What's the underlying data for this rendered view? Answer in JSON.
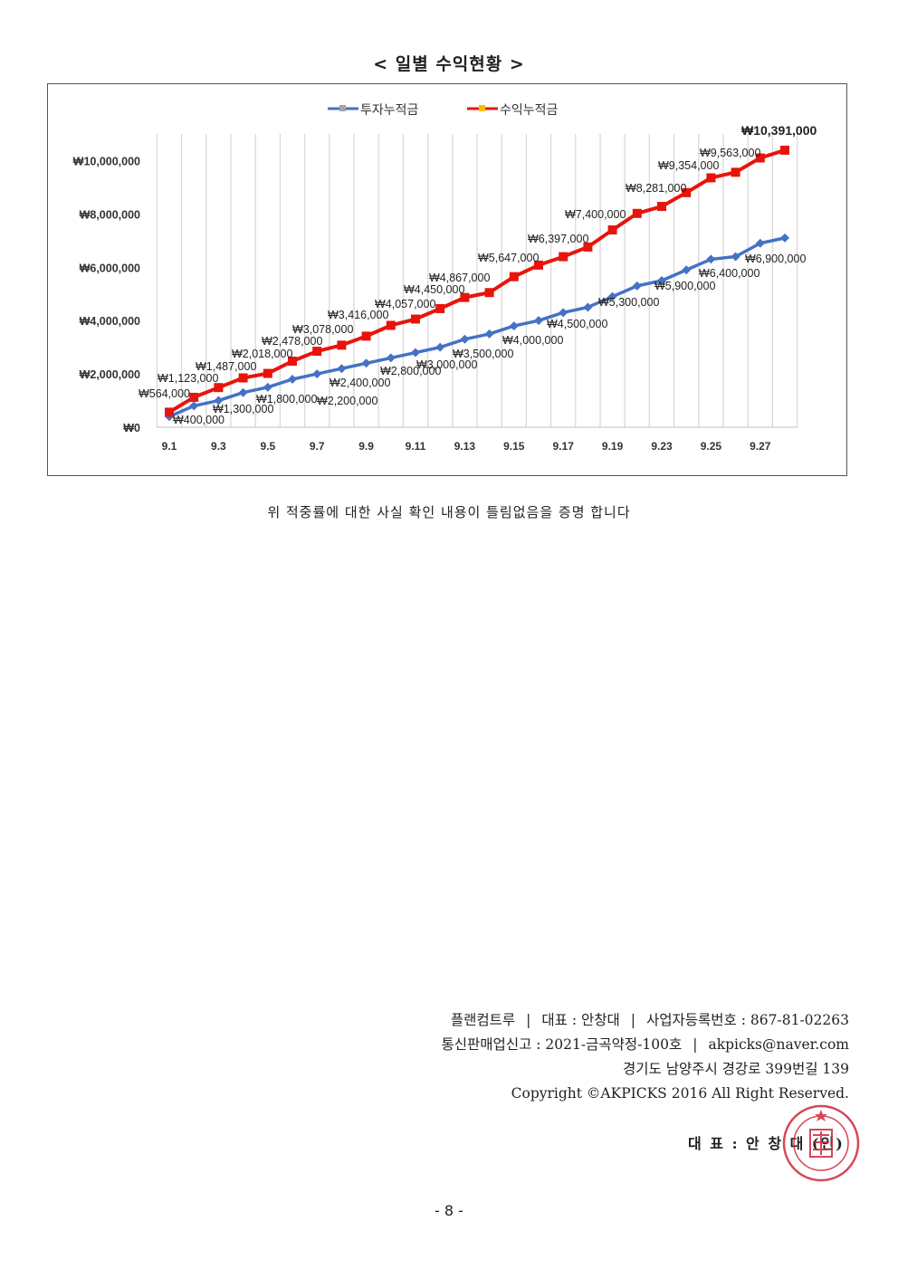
{
  "title": "< 일별 수익현황 >",
  "chart_data": {
    "type": "line",
    "title": "",
    "xlabel": "",
    "ylabel": "",
    "ylim": [
      0,
      11000000
    ],
    "y_ticks": [
      0,
      2000000,
      4000000,
      6000000,
      8000000,
      10000000
    ],
    "y_tick_labels": [
      "₩0",
      "₩2,000,000",
      "₩4,000,000",
      "₩6,000,000",
      "₩8,000,000",
      "₩10,000,000"
    ],
    "categories": [
      "9.1",
      "",
      "9.3",
      "",
      "9.5",
      "",
      "9.7",
      "",
      "9.9",
      "",
      "9.11",
      "",
      "9.13",
      "",
      "9.15",
      "",
      "9.17",
      "",
      "9.19",
      "",
      "9.23",
      "",
      "9.25",
      "",
      "9.27",
      ""
    ],
    "grid": "vertical",
    "legend_position": "top",
    "series": [
      {
        "name": "투자누적금",
        "color": "#4472c4",
        "marker": "diamond",
        "values": [
          400000,
          800000,
          1000000,
          1300000,
          1500000,
          1800000,
          2000000,
          2200000,
          2400000,
          2600000,
          2800000,
          3000000,
          3300000,
          3500000,
          3800000,
          4000000,
          4300000,
          4500000,
          4900000,
          5300000,
          5500000,
          5900000,
          6300000,
          6400000,
          6900000,
          7100000
        ],
        "labels": [
          "₩400,000",
          null,
          null,
          "₩1,300,000",
          null,
          "₩1,800,000",
          null,
          "₩2,200,000",
          "₩2,400,000",
          null,
          "₩2,800,000",
          "₩3,000,000",
          null,
          "₩3,500,000",
          null,
          "₩4,000,000",
          null,
          "₩4,500,000",
          null,
          "₩5,300,000",
          null,
          "₩5,900,000",
          null,
          "₩6,400,000",
          "₩6,900,000",
          null
        ]
      },
      {
        "name": "수익누적금",
        "color": "#e8140c",
        "marker": "square",
        "values": [
          564000,
          1123000,
          1487000,
          1850000,
          2018000,
          2478000,
          2850000,
          3078000,
          3416000,
          3820000,
          4057000,
          4450000,
          4867000,
          5050000,
          5647000,
          6080000,
          6397000,
          6760000,
          7400000,
          8020000,
          8281000,
          8800000,
          9354000,
          9563000,
          10100000,
          10391000
        ],
        "labels": [
          "₩564,000",
          "₩1,123,000",
          "₩1,487,000",
          null,
          "₩2,018,000",
          "₩2,478,000",
          null,
          "₩3,078,000",
          "₩3,416,000",
          null,
          "₩4,057,000",
          "₩4,450,000",
          "₩4,867,000",
          null,
          "₩5,647,000",
          null,
          "₩6,397,000",
          null,
          "₩7,400,000",
          null,
          "₩8,281,000",
          null,
          "₩9,354,000",
          "₩9,563,000",
          null,
          "₩10,391,000"
        ]
      }
    ]
  },
  "note": "위 적중률에 대한 사실 확인 내용이 틀림없음을 증명 합니다",
  "footer": {
    "line1": [
      "플랜컴트루",
      "대표 : 안창대",
      "사업자등록번호 : 867-81-02263"
    ],
    "line2": [
      "통신판매업신고 : 2021-금곡약정-100호",
      "akpicks@naver.com"
    ],
    "address": "경기도 남양주시 경강로 399번길 139",
    "copyright": "Copyright ©AKPICKS 2016 All Right Reserved.",
    "signature": "대 표 : 안 창 대 (인)",
    "separator": "|"
  },
  "page_number": "- 8 -"
}
